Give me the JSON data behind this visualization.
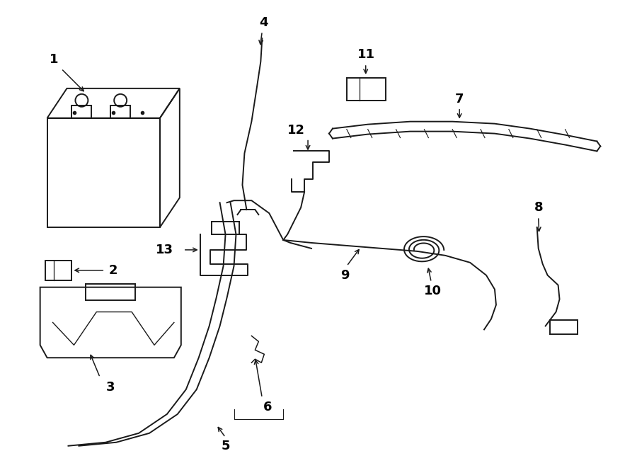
{
  "background_color": "#ffffff",
  "line_color": "#1a1a1a",
  "figsize": [
    9.0,
    6.61
  ],
  "dpi": 100
}
